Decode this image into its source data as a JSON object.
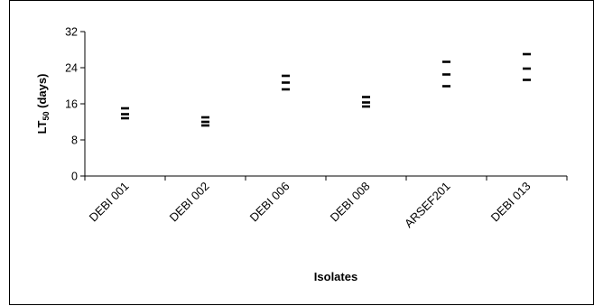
{
  "chart_data": {
    "type": "scatter",
    "title": "",
    "xlabel": "Isolates",
    "ylabel_main": "LT",
    "ylabel_sub": "50",
    "ylabel_tail": " (days)",
    "categories": [
      "DEBI 001",
      "DEBI 002",
      "DEBI 006",
      "DEBI 008",
      "ARSEF201",
      "DEBI 013"
    ],
    "series": [
      {
        "values": [
          15.0,
          13.0,
          22.2,
          17.5,
          25.3,
          27.0
        ]
      },
      {
        "values": [
          13.7,
          12.0,
          20.7,
          16.3,
          22.5,
          23.8
        ]
      },
      {
        "values": [
          12.8,
          11.2,
          19.2,
          15.4,
          19.9,
          21.3
        ]
      }
    ],
    "ylim": [
      0,
      32
    ],
    "yticks": [
      "0",
      "8",
      "16",
      "24",
      "32"
    ],
    "grid": false,
    "legend": "none",
    "marker": "dash",
    "colors": {
      "marker": "#000000",
      "axis": "#000000",
      "background": "#ffffff"
    }
  }
}
